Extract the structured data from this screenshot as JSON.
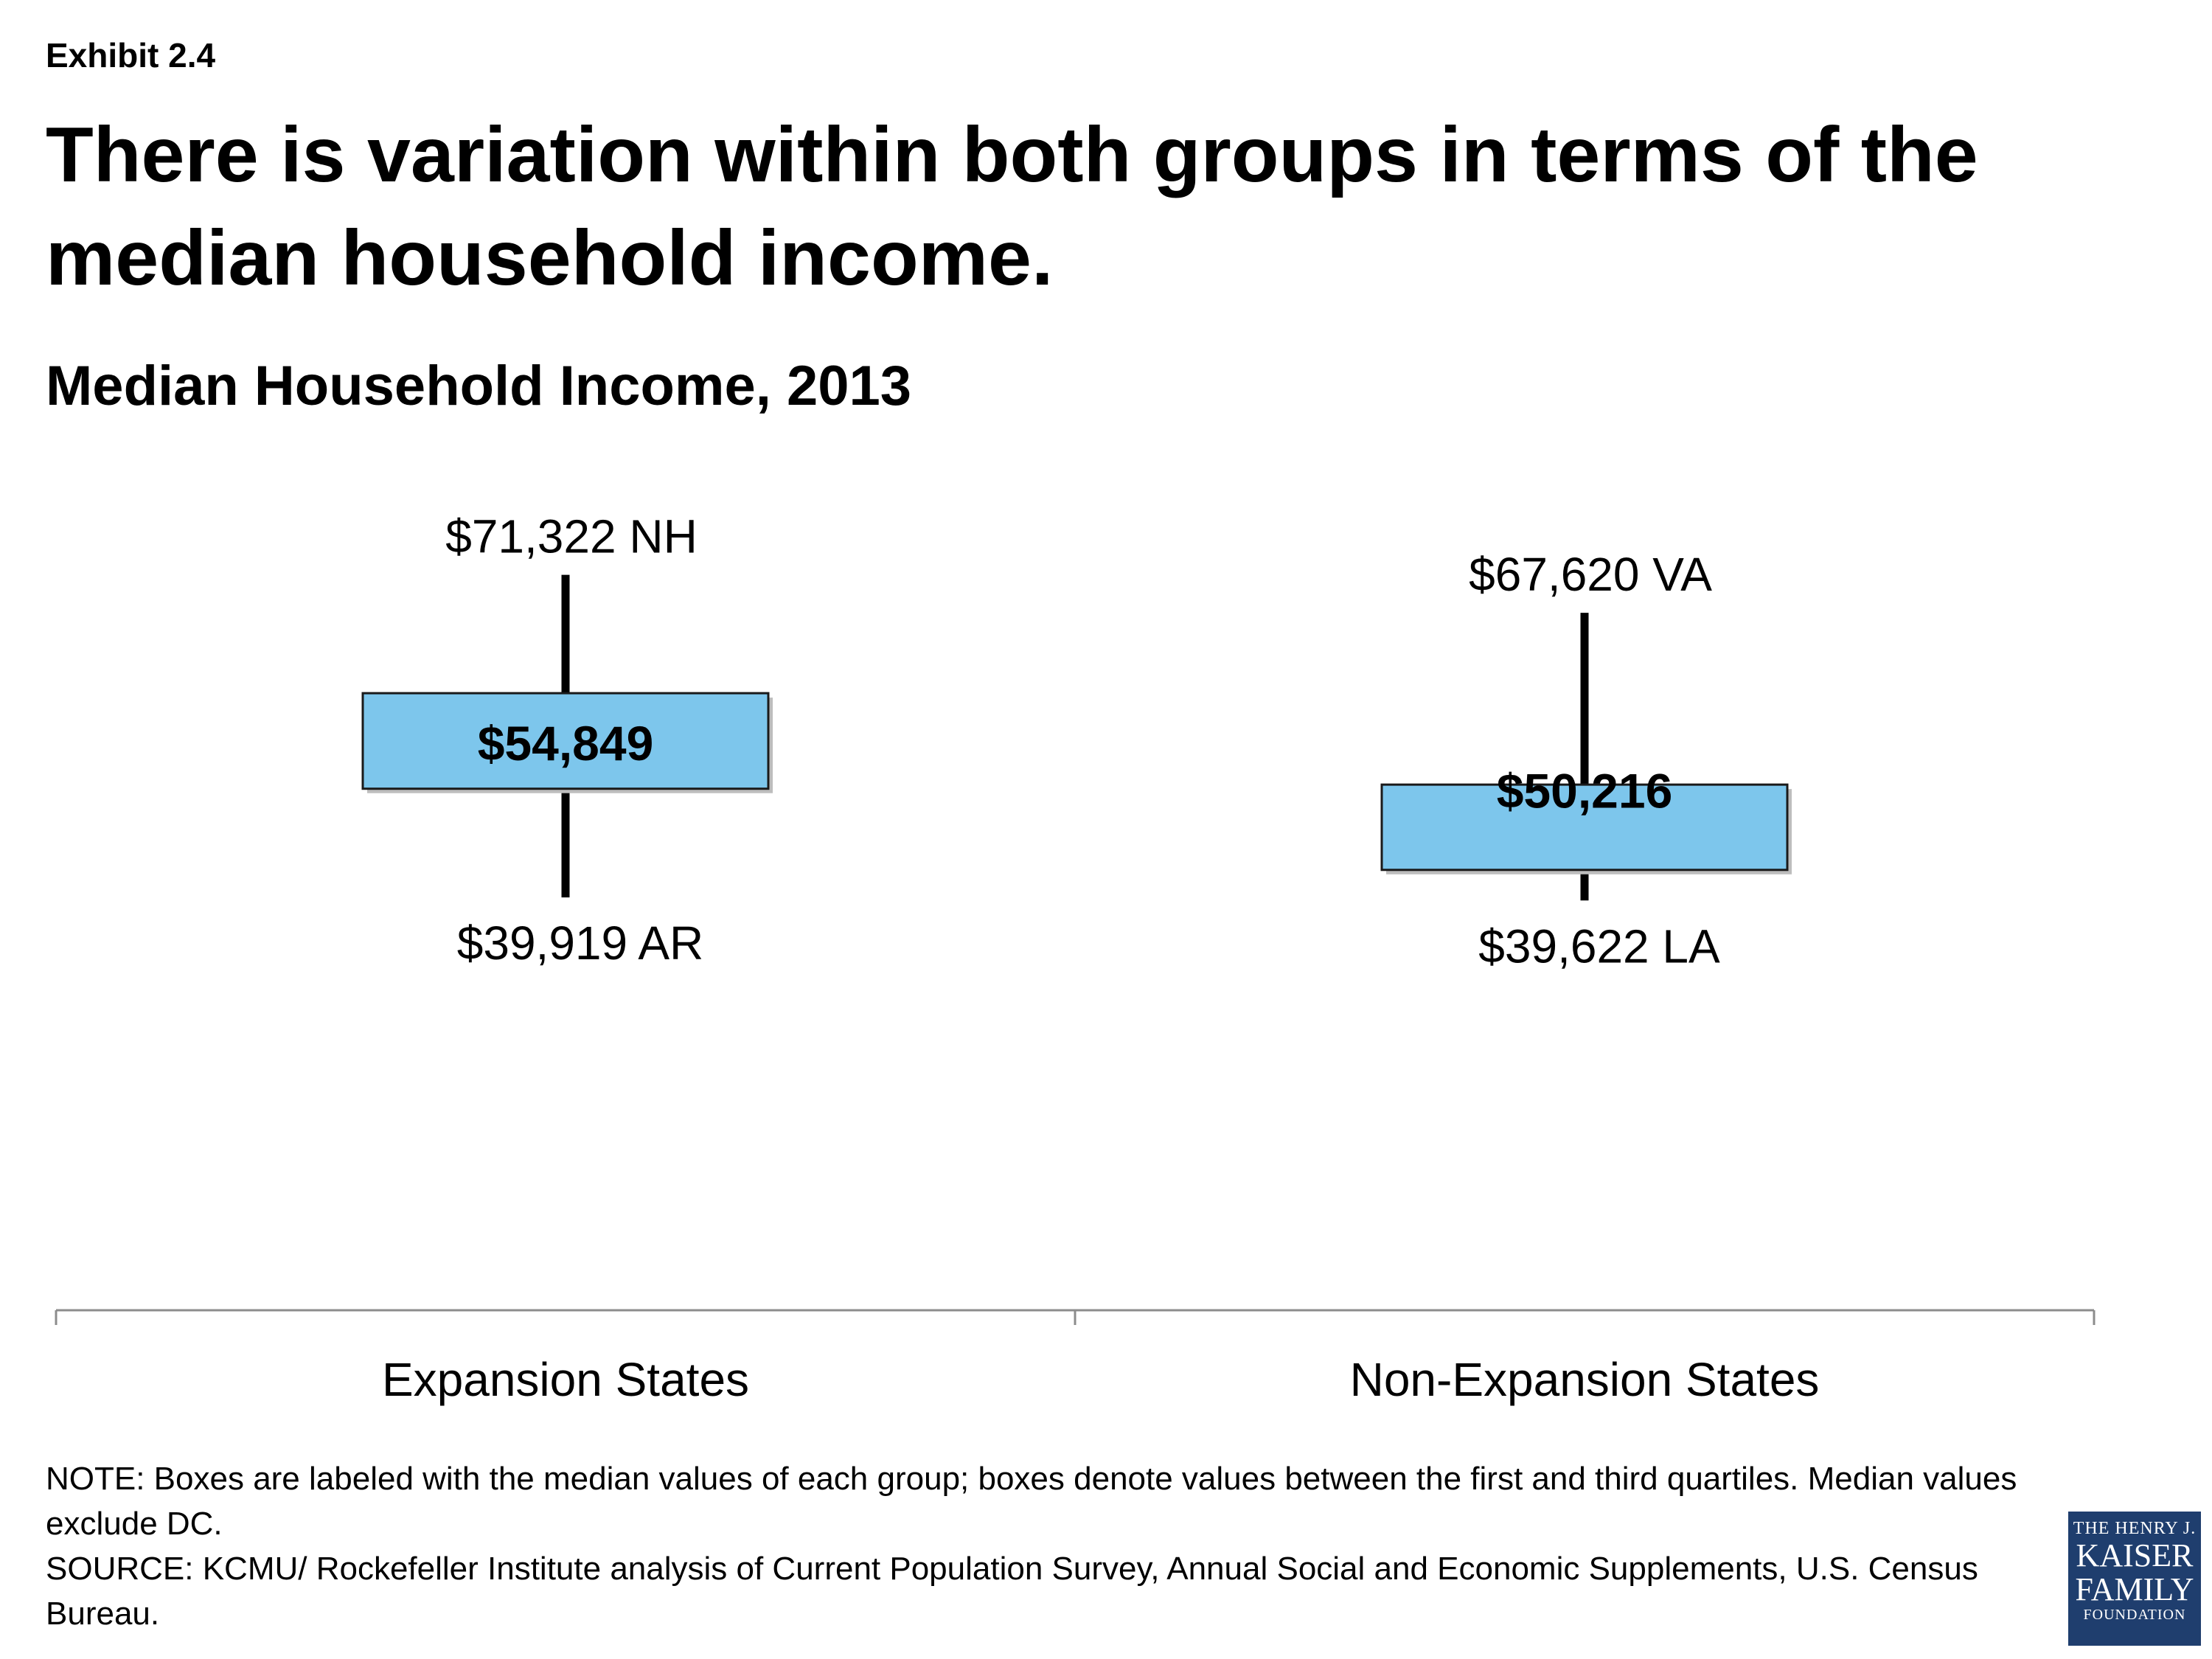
{
  "exhibit": "Exhibit 2.4",
  "headline": "There is variation within both groups in terms of the median household income.",
  "chart_data": {
    "type": "box",
    "title": "Median Household Income, 2013",
    "categories": [
      "Expansion States",
      "Non-Expansion States"
    ],
    "groups": [
      {
        "category": "Expansion States",
        "max": 71322,
        "max_label": "$71,322 NH",
        "median": 54849,
        "median_label": "$54,849",
        "min": 39919,
        "min_label": "$39,919 AR",
        "q1": 50500,
        "q3": 59800
      },
      {
        "category": "Non-Expansion States",
        "max": 67620,
        "max_label": "$67,620 VA",
        "median": 50216,
        "median_label": "$50,216",
        "min": 39622,
        "min_label": "$39,622 LA",
        "q1": 42600,
        "q3": 50900
      }
    ],
    "ylim": [
      20000,
      80000
    ],
    "box_color": "#7dc6ec",
    "grid": false
  },
  "note": "NOTE: Boxes are labeled with the median values of each group; boxes denote values between the first and third quartiles. Median values exclude DC.",
  "source": "SOURCE: KCMU/ Rockefeller Institute analysis of Current Population Survey, Annual Social and Economic Supplements, U.S. Census Bureau.",
  "logo": {
    "line1": "THE HENRY J.",
    "line2": "KAISER",
    "line3": "FAMILY",
    "line4": "FOUNDATION"
  }
}
